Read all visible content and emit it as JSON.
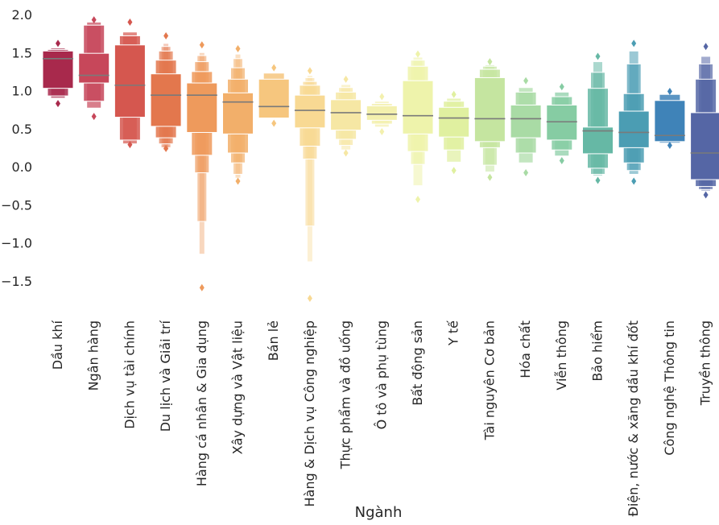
{
  "chart_data": {
    "type": "boxenplot",
    "title": "",
    "xlabel": "Ngành",
    "ylabel": "",
    "ylim": [
      -1.95,
      2.1
    ],
    "yticks": [
      2.0,
      1.5,
      1.0,
      0.5,
      0.0,
      -0.5,
      -1.0,
      -1.5
    ],
    "ytick_labels": [
      "2.0",
      "1.5",
      "1.0",
      "0.5",
      "0.0",
      "−0.5",
      "−1.0",
      "−1.5"
    ],
    "grid": false,
    "legend": "none",
    "categories": [
      "Dầu khí",
      "Ngân hàng",
      "Dịch vụ tài chính",
      "Du lịch và Giải trí",
      "Hàng cá nhân & Gia dụng",
      "Xây dựng và Vật liệu",
      "Bán lẻ",
      "Hàng & Dịch vụ Công nghiệp",
      "Thực phẩm và đồ uống",
      "Ô tô và phụ tùng",
      "Bất động sản",
      "Y tế",
      "Tài nguyên Cơ bản",
      "Hóa chất",
      "Viễn thông",
      "Bảo hiểm",
      "Điện, nước & xăng dầu khí đốt",
      "Công nghệ Thông tin",
      "Truyền thông"
    ],
    "colors": [
      "#a8294c",
      "#c7475a",
      "#d5574f",
      "#e3774d",
      "#ee9a5c",
      "#f2af6a",
      "#f6c67e",
      "#f8d993",
      "#f6e7a4",
      "#f3f0ae",
      "#eef3ab",
      "#e0f0a0",
      "#c5e5a0",
      "#a9dba5",
      "#86cca3",
      "#66b8a5",
      "#4b9db3",
      "#3f83b8",
      "#5566a5"
    ],
    "median_color": "#7a7a7a",
    "boxes": [
      {
        "median": 1.42,
        "levels": [
          [
            1.03,
            1.52
          ],
          [
            0.93,
            1.54
          ],
          [
            0.9,
            1.56
          ]
        ],
        "outliers": [
          1.62,
          0.83
        ]
      },
      {
        "median": 1.2,
        "levels": [
          [
            1.1,
            1.49
          ],
          [
            0.86,
            1.86
          ],
          [
            0.77,
            1.9
          ]
        ],
        "outliers": [
          1.93,
          0.66
        ]
      },
      {
        "median": 1.07,
        "levels": [
          [
            0.65,
            1.6
          ],
          [
            0.35,
            1.72
          ],
          [
            0.3,
            1.77
          ]
        ],
        "outliers": [
          1.9,
          0.29
        ]
      },
      {
        "median": 0.94,
        "levels": [
          [
            0.53,
            1.22
          ],
          [
            0.38,
            1.4
          ],
          [
            0.3,
            1.52
          ],
          [
            0.25,
            1.58
          ],
          [
            0.22,
            1.62
          ]
        ],
        "outliers": [
          1.72,
          0.24
        ]
      },
      {
        "median": 0.94,
        "levels": [
          [
            0.45,
            1.1
          ],
          [
            0.15,
            1.25
          ],
          [
            -0.08,
            1.38
          ],
          [
            -0.72,
            1.46
          ],
          [
            -1.15,
            1.5
          ]
        ],
        "outliers": [
          1.6,
          -1.59
        ]
      },
      {
        "median": 0.85,
        "levels": [
          [
            0.43,
            0.97
          ],
          [
            0.18,
            1.15
          ],
          [
            0.05,
            1.3
          ],
          [
            -0.1,
            1.42
          ],
          [
            -0.15,
            1.48
          ]
        ],
        "outliers": [
          1.55,
          -0.19
        ]
      },
      {
        "median": 0.79,
        "levels": [
          [
            0.64,
            1.15
          ],
          [
            0.63,
            1.23
          ]
        ],
        "outliers": [
          1.3,
          0.57
        ]
      },
      {
        "median": 0.74,
        "levels": [
          [
            0.51,
            0.94
          ],
          [
            0.27,
            1.07
          ],
          [
            0.1,
            1.12
          ],
          [
            -0.78,
            1.17
          ],
          [
            -1.25,
            1.2
          ]
        ],
        "outliers": [
          1.26,
          -1.73
        ]
      },
      {
        "median": 0.71,
        "levels": [
          [
            0.48,
            0.88
          ],
          [
            0.36,
            0.98
          ],
          [
            0.28,
            1.04
          ],
          [
            0.22,
            1.08
          ]
        ],
        "outliers": [
          1.15,
          0.18
        ]
      },
      {
        "median": 0.69,
        "levels": [
          [
            0.61,
            0.8
          ],
          [
            0.56,
            0.83
          ],
          [
            0.52,
            0.86
          ]
        ],
        "outliers": [
          0.92,
          0.46
        ]
      },
      {
        "median": 0.67,
        "levels": [
          [
            0.43,
            1.13
          ],
          [
            0.2,
            1.32
          ],
          [
            0.03,
            1.4
          ],
          [
            -0.25,
            1.44
          ]
        ],
        "outliers": [
          1.48,
          -0.43
        ]
      },
      {
        "median": 0.64,
        "levels": [
          [
            0.39,
            0.78
          ],
          [
            0.22,
            0.86
          ],
          [
            0.06,
            0.9
          ]
        ],
        "outliers": [
          0.95,
          -0.05
        ]
      },
      {
        "median": 0.63,
        "levels": [
          [
            0.33,
            1.17
          ],
          [
            0.25,
            1.28
          ],
          [
            0.02,
            1.32
          ],
          [
            -0.07,
            1.34
          ]
        ],
        "outliers": [
          1.38,
          -0.14
        ]
      },
      {
        "median": 0.63,
        "levels": [
          [
            0.38,
            0.81
          ],
          [
            0.18,
            0.98
          ],
          [
            0.05,
            1.04
          ]
        ],
        "outliers": [
          1.13,
          -0.08
        ]
      },
      {
        "median": 0.59,
        "levels": [
          [
            0.35,
            0.81
          ],
          [
            0.22,
            0.92
          ],
          [
            0.14,
            0.98
          ]
        ],
        "outliers": [
          1.05,
          0.08
        ]
      },
      {
        "median": 0.47,
        "levels": [
          [
            0.17,
            0.52
          ],
          [
            -0.02,
            1.03
          ],
          [
            -0.1,
            1.24
          ],
          [
            -0.12,
            1.38
          ]
        ],
        "outliers": [
          1.45,
          -0.18
        ]
      },
      {
        "median": 0.45,
        "levels": [
          [
            0.25,
            0.73
          ],
          [
            0.05,
            0.96
          ],
          [
            -0.05,
            1.35
          ],
          [
            -0.1,
            1.52
          ]
        ],
        "outliers": [
          1.62,
          -0.19
        ]
      },
      {
        "median": 0.41,
        "levels": [
          [
            0.33,
            0.87
          ],
          [
            0.31,
            0.95
          ]
        ],
        "outliers": [
          0.99,
          0.28
        ]
      },
      {
        "median": 0.18,
        "levels": [
          [
            -0.17,
            0.71
          ],
          [
            -0.26,
            1.15
          ],
          [
            -0.3,
            1.35
          ],
          [
            -0.32,
            1.45
          ]
        ],
        "outliers": [
          1.58,
          -0.37
        ]
      }
    ]
  }
}
